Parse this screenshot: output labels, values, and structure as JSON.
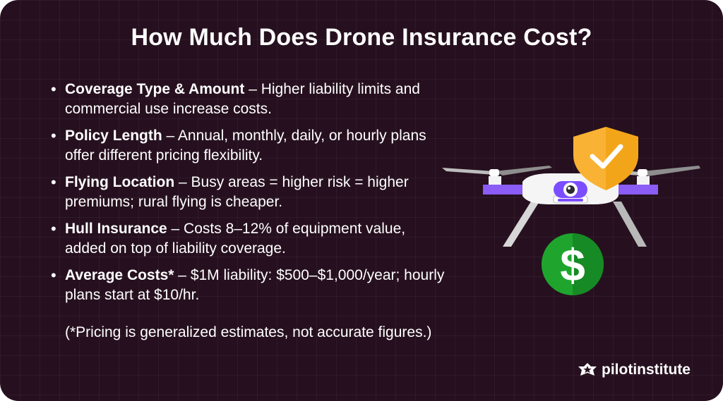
{
  "title": "How Much Does Drone Insurance Cost?",
  "bullets": [
    {
      "term": "Coverage Type & Amount",
      "desc": " – Higher liability limits and commercial use increase costs."
    },
    {
      "term": "Policy Length",
      "desc": " – Annual, monthly, daily, or hourly plans offer different pricing flexibility."
    },
    {
      "term": "Flying Location",
      "desc": " – Busy areas = higher risk = higher premiums; rural flying is cheaper."
    },
    {
      "term": "Hull Insurance",
      "desc": " – Costs 8–12% of equipment value, added on top of liability coverage."
    },
    {
      "term": "Average Costs*",
      "desc": " – $1M liability: $500–$1,000/year; hourly plans start at $10/hr."
    }
  ],
  "note": "(*Pricing is generalized estimates, not accurate figures.)",
  "brand": {
    "name": "pilotinstitute"
  },
  "colors": {
    "background": "#26101f",
    "drone_purple": "#7c4dff",
    "shield_yellow": "#f9b233",
    "dollar_green": "#1fa52e",
    "text": "#ffffff"
  },
  "icons": [
    "drone-icon",
    "shield-check-icon",
    "dollar-coin-icon",
    "pilot-institute-logo-icon"
  ]
}
